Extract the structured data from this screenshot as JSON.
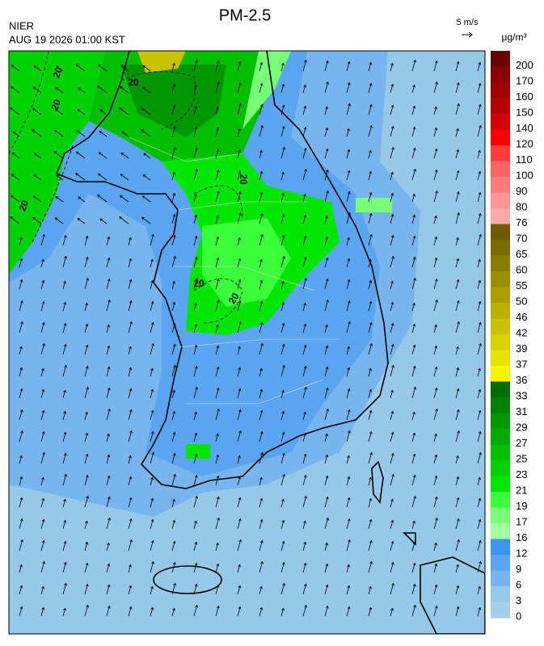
{
  "header": {
    "title": "PM-2.5",
    "agency": "NIER",
    "timestamp": "AUG 19 2026 01:00 KST",
    "wind_scale": "5 m/s",
    "unit": "μg/m³"
  },
  "contour_labels": [
    "20",
    "20",
    "20",
    "20",
    "20",
    "20",
    "20"
  ],
  "colorbar": {
    "levels": [
      {
        "label": "200",
        "color": "#6b0000"
      },
      {
        "label": "170",
        "color": "#8b0000"
      },
      {
        "label": "160",
        "color": "#a00000"
      },
      {
        "label": "150",
        "color": "#b40000"
      },
      {
        "label": "140",
        "color": "#d20000"
      },
      {
        "label": "120",
        "color": "#ff0000"
      },
      {
        "label": "110",
        "color": "#ff3c3c"
      },
      {
        "label": "100",
        "color": "#ff6464"
      },
      {
        "label": "90",
        "color": "#ff7b7b"
      },
      {
        "label": "80",
        "color": "#ff9494"
      },
      {
        "label": "76",
        "color": "#ffa8a8"
      },
      {
        "label": "70",
        "color": "#6b5c00"
      },
      {
        "label": "65",
        "color": "#7a6c00"
      },
      {
        "label": "60",
        "color": "#8a7c00"
      },
      {
        "label": "55",
        "color": "#9a8e00"
      },
      {
        "label": "50",
        "color": "#aa9f00"
      },
      {
        "label": "46",
        "color": "#b9b000"
      },
      {
        "label": "42",
        "color": "#c8c200"
      },
      {
        "label": "39",
        "color": "#d6d200"
      },
      {
        "label": "37",
        "color": "#e4e400"
      },
      {
        "label": "36",
        "color": "#f5f500"
      },
      {
        "label": "33",
        "color": "#006b00"
      },
      {
        "label": "31",
        "color": "#008000"
      },
      {
        "label": "29",
        "color": "#009600"
      },
      {
        "label": "27",
        "color": "#00aa00"
      },
      {
        "label": "25",
        "color": "#00be00"
      },
      {
        "label": "23",
        "color": "#00d200"
      },
      {
        "label": "21",
        "color": "#00e600"
      },
      {
        "label": "19",
        "color": "#3cff3c"
      },
      {
        "label": "17",
        "color": "#78ff78"
      },
      {
        "label": "16",
        "color": "#a0ffa0"
      },
      {
        "label": "12",
        "color": "#3c96f0"
      },
      {
        "label": "9",
        "color": "#5aa5f0"
      },
      {
        "label": "6",
        "color": "#78b4ee"
      },
      {
        "label": "3",
        "color": "#96c8ea"
      },
      {
        "label": "0",
        "color": "#a4cfe6"
      }
    ]
  }
}
